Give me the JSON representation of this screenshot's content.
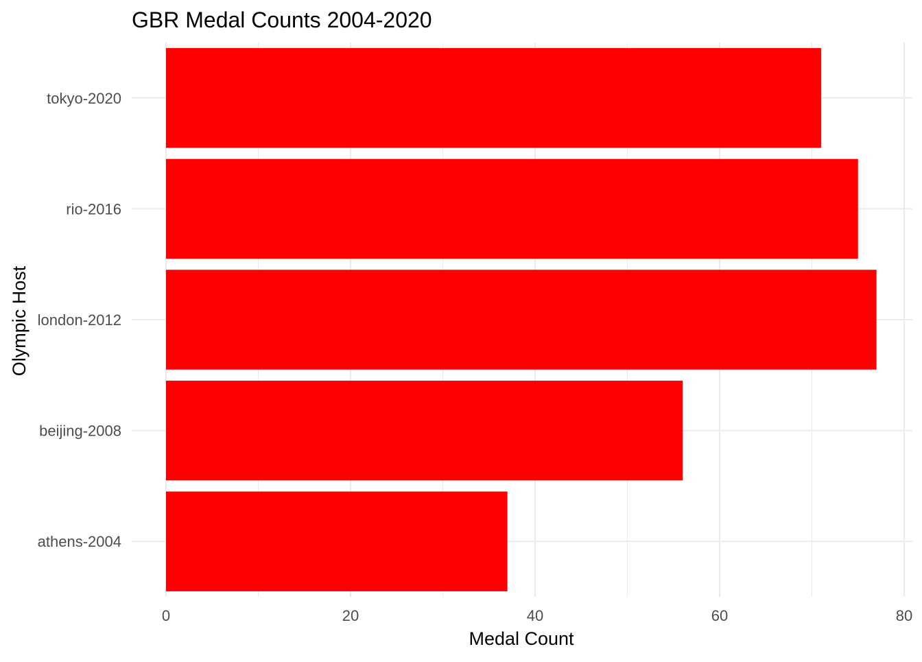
{
  "chart_data": {
    "type": "bar",
    "orientation": "horizontal",
    "title": "GBR Medal Counts 2004-2020",
    "xlabel": "Medal Count",
    "ylabel": "Olympic Host",
    "categories": [
      "athens-2004",
      "beijing-2008",
      "london-2012",
      "rio-2016",
      "tokyo-2020"
    ],
    "values": [
      37,
      56,
      77,
      75,
      71
    ],
    "xlim": [
      0,
      80
    ],
    "xticks": [
      0,
      20,
      40,
      60,
      80
    ],
    "x_minor_ticks": [
      10,
      30,
      50,
      70
    ],
    "grid": true,
    "bar_color": "#FF0000",
    "grid_color": "#EBEBEB"
  }
}
